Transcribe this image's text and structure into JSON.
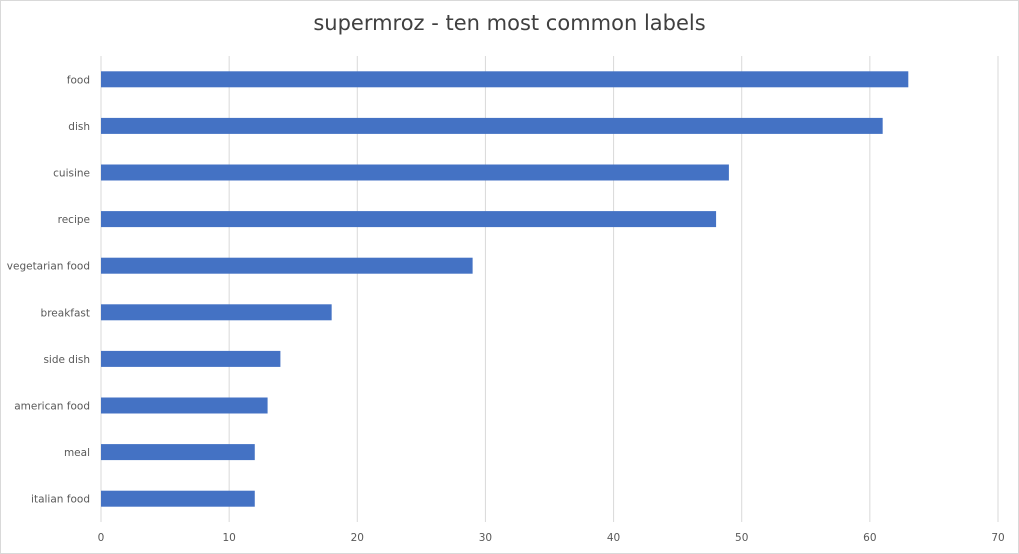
{
  "chart_data": {
    "type": "bar",
    "orientation": "horizontal",
    "title": "supermroz - ten most common labels",
    "categories": [
      "food",
      "dish",
      "cuisine",
      "recipe",
      "vegetarian food",
      "breakfast",
      "side dish",
      "american food",
      "meal",
      "italian food"
    ],
    "values": [
      63,
      61,
      49,
      48,
      29,
      18,
      14,
      13,
      12,
      12
    ],
    "xlabel": "",
    "ylabel": "",
    "xlim": [
      0,
      70
    ],
    "xticks": [
      0,
      10,
      20,
      30,
      40,
      50,
      60,
      70
    ],
    "grid": true,
    "legend": "none",
    "bar_color": "#4472c4",
    "grid_color": "#d9d9d9"
  }
}
